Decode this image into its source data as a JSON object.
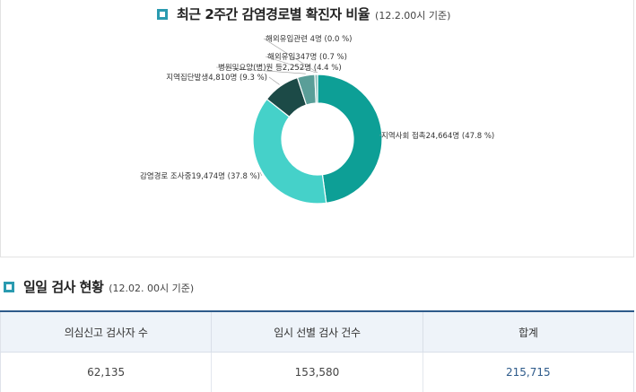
{
  "chart_section": {
    "title": "최근 2주간 감염경로별 확진자 비율",
    "subtitle": "(12.2.00시 기준)"
  },
  "chart_data": {
    "type": "pie",
    "donut": true,
    "slices": [
      {
        "label": "지역사회 접촉24,664명 (47.8 %)",
        "category": "지역사회 접촉",
        "count": 24664,
        "percent": 47.8,
        "color": "#0d9f96"
      },
      {
        "label": "감염경로 조사중19,474명 (37.8 %)",
        "category": "감염경로 조사중",
        "count": 19474,
        "percent": 37.8,
        "color": "#45d1c9"
      },
      {
        "label": "지역집단발생4,810명 (9.3 %)",
        "category": "지역집단발생",
        "count": 4810,
        "percent": 9.3,
        "color": "#1c4a47"
      },
      {
        "label": "병원및요양(병)원 등2,252명 (4.4 %)",
        "category": "병원및요양(병)원 등",
        "count": 2252,
        "percent": 4.4,
        "color": "#5a9e98"
      },
      {
        "label": "해외유입347명 (0.7 %)",
        "category": "해외유입",
        "count": 347,
        "percent": 0.7,
        "color": "#7fbab5"
      },
      {
        "label": "해외유입관련 4명 (0.0 %)",
        "category": "해외유입관련",
        "count": 4,
        "percent": 0.0,
        "color": "#a8d4d0"
      }
    ]
  },
  "test_section": {
    "title": "일일 검사 현황",
    "subtitle": "(12.02. 00시 기준)"
  },
  "test_table": {
    "headers": [
      "의심신고 검사자 수",
      "임시 선별 검사 건수",
      "합계"
    ],
    "values": [
      "62,135",
      "153,580",
      "215,715"
    ]
  }
}
